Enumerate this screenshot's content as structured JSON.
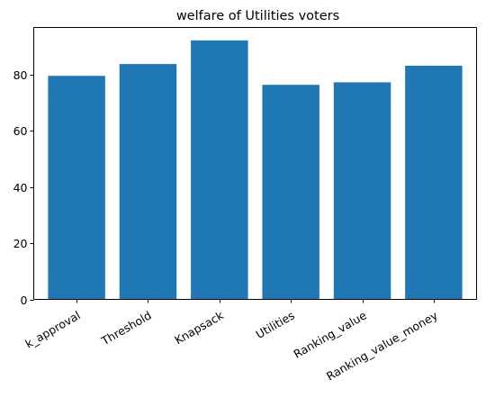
{
  "chart_data": {
    "type": "bar",
    "title": "welfare of Utilities voters",
    "xlabel": "",
    "ylabel": "",
    "categories": [
      "k_approval",
      "Threshold",
      "Knapsack",
      "Utilities",
      "Ranking_value",
      "Ranking_value_money"
    ],
    "values": [
      79.5,
      83.7,
      92.1,
      76.3,
      77.2,
      83.1
    ],
    "ylim": [
      0,
      96.7
    ],
    "yticks": [
      0,
      20,
      40,
      60,
      80
    ],
    "ytick_labels": [
      "0",
      "20",
      "40",
      "60",
      "80"
    ],
    "bar_color": "#1f77b4",
    "grid": false
  }
}
